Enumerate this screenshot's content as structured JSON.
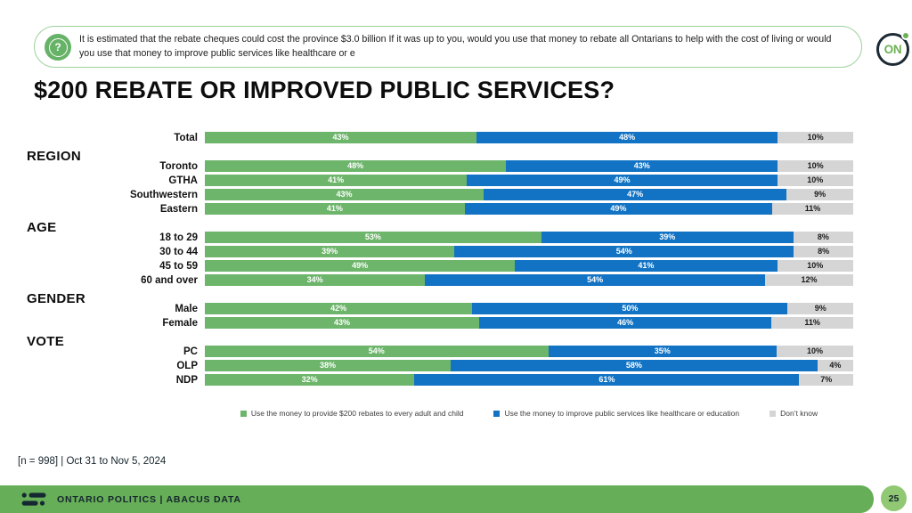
{
  "header": {
    "question_text": "It is estimated that the rebate cheques could cost the province $3.0 billion  If it was up to you, would you use that money to rebate all Ontarians to help with the cost of living or would you use that money to improve public services like healthcare or e",
    "icon_glyph": "?",
    "logo_text": "ON"
  },
  "title": "$200 REBATE OR IMPROVED PUBLIC SERVICES?",
  "chart_data": {
    "type": "bar",
    "variant": "stacked-horizontal-100pct",
    "title": "$200 REBATE OR IMPROVED PUBLIC SERVICES?",
    "unit": "%",
    "legend_position": "bottom",
    "series": [
      {
        "id": "rebates",
        "name": "Use the money to provide $200 rebates to every adult and child",
        "color": "#6DB56B",
        "text_color": "#ffffff"
      },
      {
        "id": "services",
        "name": "Use the money to improve public services like healthcare or education",
        "color": "#1273C4",
        "text_color": "#ffffff"
      },
      {
        "id": "dont-know",
        "name": "Don’t know",
        "color": "#D5D5D5",
        "text_color": "#1a1a1a"
      }
    ],
    "groups": [
      {
        "label": "",
        "rows": [
          {
            "label": "Total",
            "values": [
              43,
              48,
              10
            ]
          }
        ]
      },
      {
        "label": "REGION",
        "rows": [
          {
            "label": "Toronto",
            "values": [
              48,
              43,
              10
            ]
          },
          {
            "label": "GTHA",
            "values": [
              41,
              49,
              10
            ]
          },
          {
            "label": "Southwestern",
            "values": [
              43,
              47,
              9
            ]
          },
          {
            "label": "Eastern",
            "values": [
              41,
              49,
              11
            ]
          }
        ]
      },
      {
        "label": "AGE",
        "rows": [
          {
            "label": "18 to 29",
            "values": [
              53,
              39,
              8
            ]
          },
          {
            "label": "30 to 44",
            "values": [
              39,
              54,
              8
            ]
          },
          {
            "label": "45 to 59",
            "values": [
              49,
              41,
              10
            ]
          },
          {
            "label": "60 and over",
            "values": [
              34,
              54,
              12
            ]
          }
        ]
      },
      {
        "label": "GENDER",
        "rows": [
          {
            "label": "Male",
            "values": [
              42,
              50,
              9
            ]
          },
          {
            "label": "Female",
            "values": [
              43,
              46,
              11
            ]
          }
        ]
      },
      {
        "label": "VOTE",
        "rows": [
          {
            "label": "PC",
            "values": [
              54,
              35,
              10
            ]
          },
          {
            "label": "OLP",
            "values": [
              38,
              58,
              4
            ]
          },
          {
            "label": "NDP",
            "values": [
              32,
              61,
              7
            ]
          }
        ]
      }
    ]
  },
  "footer": {
    "note": "[n = 998] | Oct 31 to Nov 5, 2024",
    "bar_text": "ONTARIO POLITICS  |  ABACUS DATA",
    "page_number": "25"
  },
  "colors": {
    "rebates_green": "#6DB56B",
    "services_blue": "#1273C4",
    "dont_know_gray": "#D5D5D5",
    "footer_bar_green": "#67AE58",
    "page_badge_green": "#90C873",
    "logo_navy": "#1C2A35",
    "question_border_green": "#9ED19B"
  }
}
